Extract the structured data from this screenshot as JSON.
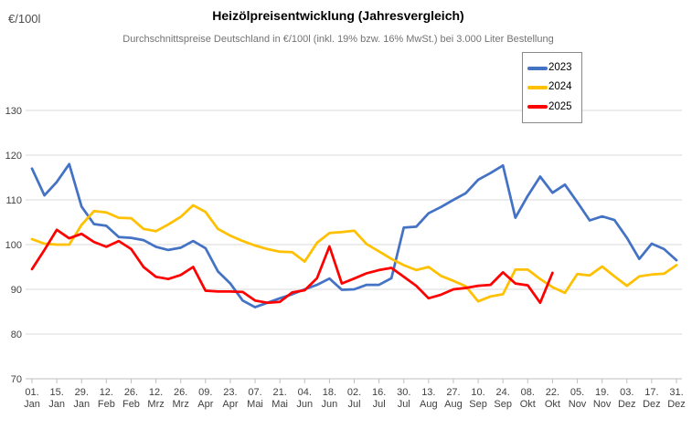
{
  "header": {
    "y_axis_unit": "€/100l",
    "title": "Heizölpreisentwicklung (Jahresvergleich)",
    "subtitle": "Durchschnittspreise Deutschland in €/100l (inkl. 19% bzw. 16% MwSt.) bei 3.000 Liter Bestellung"
  },
  "legend": {
    "position": "top-right",
    "entries": [
      {
        "label": "2023",
        "color": "#4472C4"
      },
      {
        "label": "2024",
        "color": "#FFC000"
      },
      {
        "label": "2025",
        "color": "#FF0000"
      }
    ]
  },
  "chart_data": {
    "type": "line",
    "title": "Heizölpreisentwicklung (Jahresvergleich)",
    "subtitle": "Durchschnittspreise Deutschland in €/100l (inkl. 19% bzw. 16% MwSt.) bei 3.000 Liter Bestellung",
    "ylabel": "€/100l",
    "xlabel": "",
    "ylim": [
      70,
      130
    ],
    "yticks": [
      70,
      80,
      90,
      100,
      110,
      120,
      130
    ],
    "grid": true,
    "grid_color": "#D9D9D9",
    "axis_color": "#BFBFBF",
    "tick_label_color": "#404040",
    "legend_position": "top-right",
    "x_total_days": 364,
    "sample_interval_days": 7,
    "x_tick_labels": [
      [
        "01.",
        "Jan"
      ],
      [
        "15.",
        "Jan"
      ],
      [
        "29.",
        "Jan"
      ],
      [
        "12.",
        "Feb"
      ],
      [
        "26.",
        "Feb"
      ],
      [
        "12.",
        "Mrz"
      ],
      [
        "26.",
        "Mrz"
      ],
      [
        "09.",
        "Apr"
      ],
      [
        "23.",
        "Apr"
      ],
      [
        "07.",
        "Mai"
      ],
      [
        "21.",
        "Mai"
      ],
      [
        "04.",
        "Jun"
      ],
      [
        "18.",
        "Jun"
      ],
      [
        "02.",
        "Jul"
      ],
      [
        "16.",
        "Jul"
      ],
      [
        "30.",
        "Jul"
      ],
      [
        "13.",
        "Aug"
      ],
      [
        "27.",
        "Aug"
      ],
      [
        "10.",
        "Sep"
      ],
      [
        "24.",
        "Sep"
      ],
      [
        "08.",
        "Okt"
      ],
      [
        "22.",
        "Okt"
      ],
      [
        "05.",
        "Nov"
      ],
      [
        "19.",
        "Nov"
      ],
      [
        "03.",
        "Dez"
      ],
      [
        "17.",
        "Dez"
      ],
      [
        "31.",
        "Dez"
      ]
    ],
    "series": [
      {
        "name": "2023",
        "color": "#4472C4",
        "values": [
          117.0,
          111.0,
          114.0,
          118.0,
          108.5,
          104.6,
          104.2,
          101.7,
          101.5,
          101.0,
          99.5,
          98.8,
          99.3,
          100.8,
          99.2,
          94.0,
          91.3,
          87.5,
          86.0,
          87.0,
          88.0,
          88.9,
          90.0,
          91.0,
          92.4,
          89.9,
          90.0,
          91.0,
          91.0,
          92.5,
          103.8,
          104.0,
          107.0,
          108.4,
          110.0,
          111.5,
          114.5,
          116.0,
          117.7,
          106.0,
          110.9,
          115.2,
          111.6,
          113.4,
          109.5,
          105.4,
          106.3,
          105.5,
          101.5,
          96.8,
          100.2,
          99.0,
          96.5
        ]
      },
      {
        "name": "2024",
        "color": "#FFC000",
        "values": [
          101.2,
          100.2,
          100.0,
          100.0,
          104.4,
          107.5,
          107.2,
          106.0,
          105.9,
          103.5,
          103.0,
          104.5,
          106.2,
          108.8,
          107.3,
          103.5,
          102.0,
          100.8,
          99.8,
          99.0,
          98.4,
          98.3,
          96.2,
          100.4,
          102.6,
          102.8,
          103.1,
          100.1,
          98.5,
          96.8,
          95.4,
          94.3,
          95.0,
          93.0,
          91.9,
          90.7,
          87.3,
          88.4,
          88.9,
          94.4,
          94.4,
          92.3,
          90.5,
          89.2,
          93.4,
          93.1,
          95.1,
          92.9,
          90.8,
          92.9,
          93.3,
          93.5,
          95.4
        ]
      },
      {
        "name": "2025",
        "color": "#FF0000",
        "values": [
          94.5,
          98.8,
          103.3,
          101.4,
          102.4,
          100.6,
          99.5,
          100.8,
          99.0,
          95.0,
          92.8,
          92.3,
          93.2,
          95.0,
          89.7,
          89.5,
          89.5,
          89.4,
          87.5,
          87.0,
          87.2,
          89.3,
          89.8,
          92.5,
          99.6,
          91.3,
          92.4,
          93.6,
          94.3,
          94.8,
          92.8,
          90.8,
          88.0,
          88.8,
          90.0,
          90.3,
          90.8,
          91.0,
          93.8,
          91.3,
          90.9,
          87.0,
          93.7
        ]
      }
    ]
  }
}
